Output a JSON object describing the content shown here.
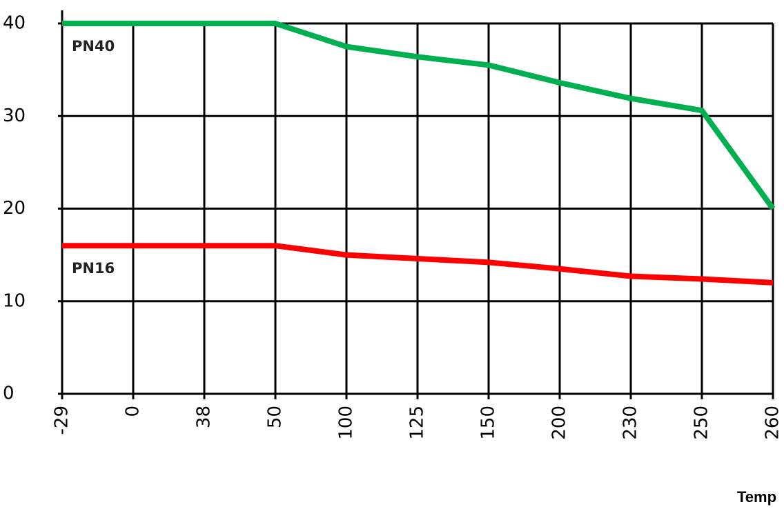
{
  "chart_data": {
    "type": "line",
    "x_label": "Temp",
    "categories": [
      "-29",
      "0",
      "38",
      "50",
      "100",
      "125",
      "150",
      "200",
      "230",
      "250",
      "260"
    ],
    "series": [
      {
        "name": "PN40",
        "color": "#00b050",
        "values": [
          40,
          40,
          40,
          40,
          37.5,
          36.4,
          35.5,
          33.6,
          31.9,
          30.6,
          20
        ]
      },
      {
        "name": "PN16",
        "color": "#ff0000",
        "values": [
          16,
          16,
          16,
          16,
          15,
          14.6,
          14.2,
          13.5,
          12.7,
          12.4,
          12
        ]
      }
    ],
    "ylim": [
      0,
      40
    ],
    "yticks": [
      0,
      10,
      20,
      30,
      40
    ],
    "grid": true
  }
}
